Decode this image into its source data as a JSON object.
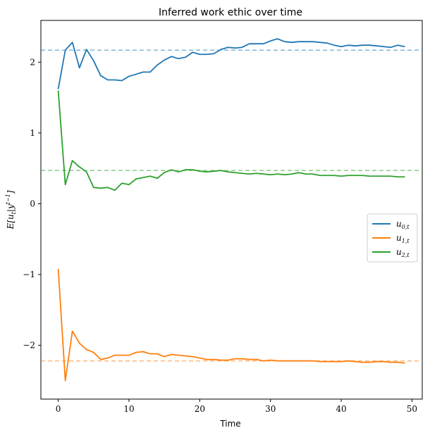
{
  "chart_data": {
    "type": "line",
    "title": "Inferred work ethic over time",
    "xlabel": "Time",
    "ylabel": "E[u_t|y^{t-1}]",
    "xlim": [
      -2.45,
      51.45
    ],
    "ylim": [
      -2.76,
      2.59
    ],
    "xticks": [
      0,
      10,
      20,
      30,
      40,
      50
    ],
    "yticks": [
      -2,
      -1,
      0,
      1,
      2
    ],
    "xtick_labels": [
      "0",
      "10",
      "20",
      "30",
      "40",
      "50"
    ],
    "ytick_labels": [
      "−2",
      "−1",
      "0",
      "1",
      "2"
    ],
    "grid": false,
    "legend_position": "center-right",
    "x": [
      0,
      1,
      2,
      3,
      4,
      5,
      6,
      7,
      8,
      9,
      10,
      11,
      12,
      13,
      14,
      15,
      16,
      17,
      18,
      19,
      20,
      21,
      22,
      23,
      24,
      25,
      26,
      27,
      28,
      29,
      30,
      31,
      32,
      33,
      34,
      35,
      36,
      37,
      38,
      39,
      40,
      41,
      42,
      43,
      44,
      45,
      46,
      47,
      48,
      49
    ],
    "series": [
      {
        "name": "u_{0,t}",
        "color": "#1f77b4",
        "values": [
          1.62,
          2.17,
          2.28,
          1.92,
          2.18,
          2.02,
          1.81,
          1.75,
          1.75,
          1.74,
          1.8,
          1.83,
          1.86,
          1.86,
          1.96,
          2.03,
          2.08,
          2.05,
          2.07,
          2.14,
          2.11,
          2.11,
          2.12,
          2.18,
          2.21,
          2.2,
          2.21,
          2.26,
          2.26,
          2.26,
          2.3,
          2.33,
          2.29,
          2.28,
          2.29,
          2.29,
          2.29,
          2.28,
          2.27,
          2.24,
          2.22,
          2.24,
          2.23,
          2.24,
          2.24,
          2.23,
          2.22,
          2.21,
          2.24,
          2.22
        ]
      },
      {
        "name": "u_{1,t}",
        "color": "#ff7f0e",
        "values": [
          -0.92,
          -2.5,
          -1.8,
          -1.97,
          -2.06,
          -2.1,
          -2.2,
          -2.18,
          -2.14,
          -2.14,
          -2.14,
          -2.1,
          -2.09,
          -2.12,
          -2.12,
          -2.16,
          -2.13,
          -2.14,
          -2.15,
          -2.16,
          -2.18,
          -2.2,
          -2.2,
          -2.21,
          -2.21,
          -2.19,
          -2.19,
          -2.2,
          -2.2,
          -2.22,
          -2.21,
          -2.22,
          -2.22,
          -2.22,
          -2.22,
          -2.22,
          -2.22,
          -2.23,
          -2.23,
          -2.23,
          -2.23,
          -2.22,
          -2.23,
          -2.24,
          -2.24,
          -2.23,
          -2.23,
          -2.24,
          -2.24,
          -2.25
        ]
      },
      {
        "name": "u_{2,t}",
        "color": "#2ca02c",
        "values": [
          1.6,
          0.27,
          0.61,
          0.52,
          0.45,
          0.23,
          0.22,
          0.23,
          0.19,
          0.29,
          0.27,
          0.35,
          0.37,
          0.39,
          0.36,
          0.44,
          0.48,
          0.45,
          0.48,
          0.48,
          0.46,
          0.45,
          0.46,
          0.47,
          0.45,
          0.44,
          0.43,
          0.42,
          0.43,
          0.42,
          0.41,
          0.42,
          0.41,
          0.42,
          0.44,
          0.42,
          0.42,
          0.4,
          0.4,
          0.4,
          0.39,
          0.4,
          0.4,
          0.4,
          0.39,
          0.39,
          0.39,
          0.39,
          0.38,
          0.38
        ]
      }
    ],
    "hlines": [
      {
        "value": 2.17,
        "color": "#1f77b4"
      },
      {
        "value": -2.22,
        "color": "#ff7f0e"
      },
      {
        "value": 0.47,
        "color": "#2ca02c"
      }
    ],
    "legend": [
      {
        "base": "u",
        "sub": "0,t",
        "color": "#1f77b4"
      },
      {
        "base": "u",
        "sub": "1,t",
        "color": "#ff7f0e"
      },
      {
        "base": "u",
        "sub": "2,t",
        "color": "#2ca02c"
      }
    ]
  }
}
